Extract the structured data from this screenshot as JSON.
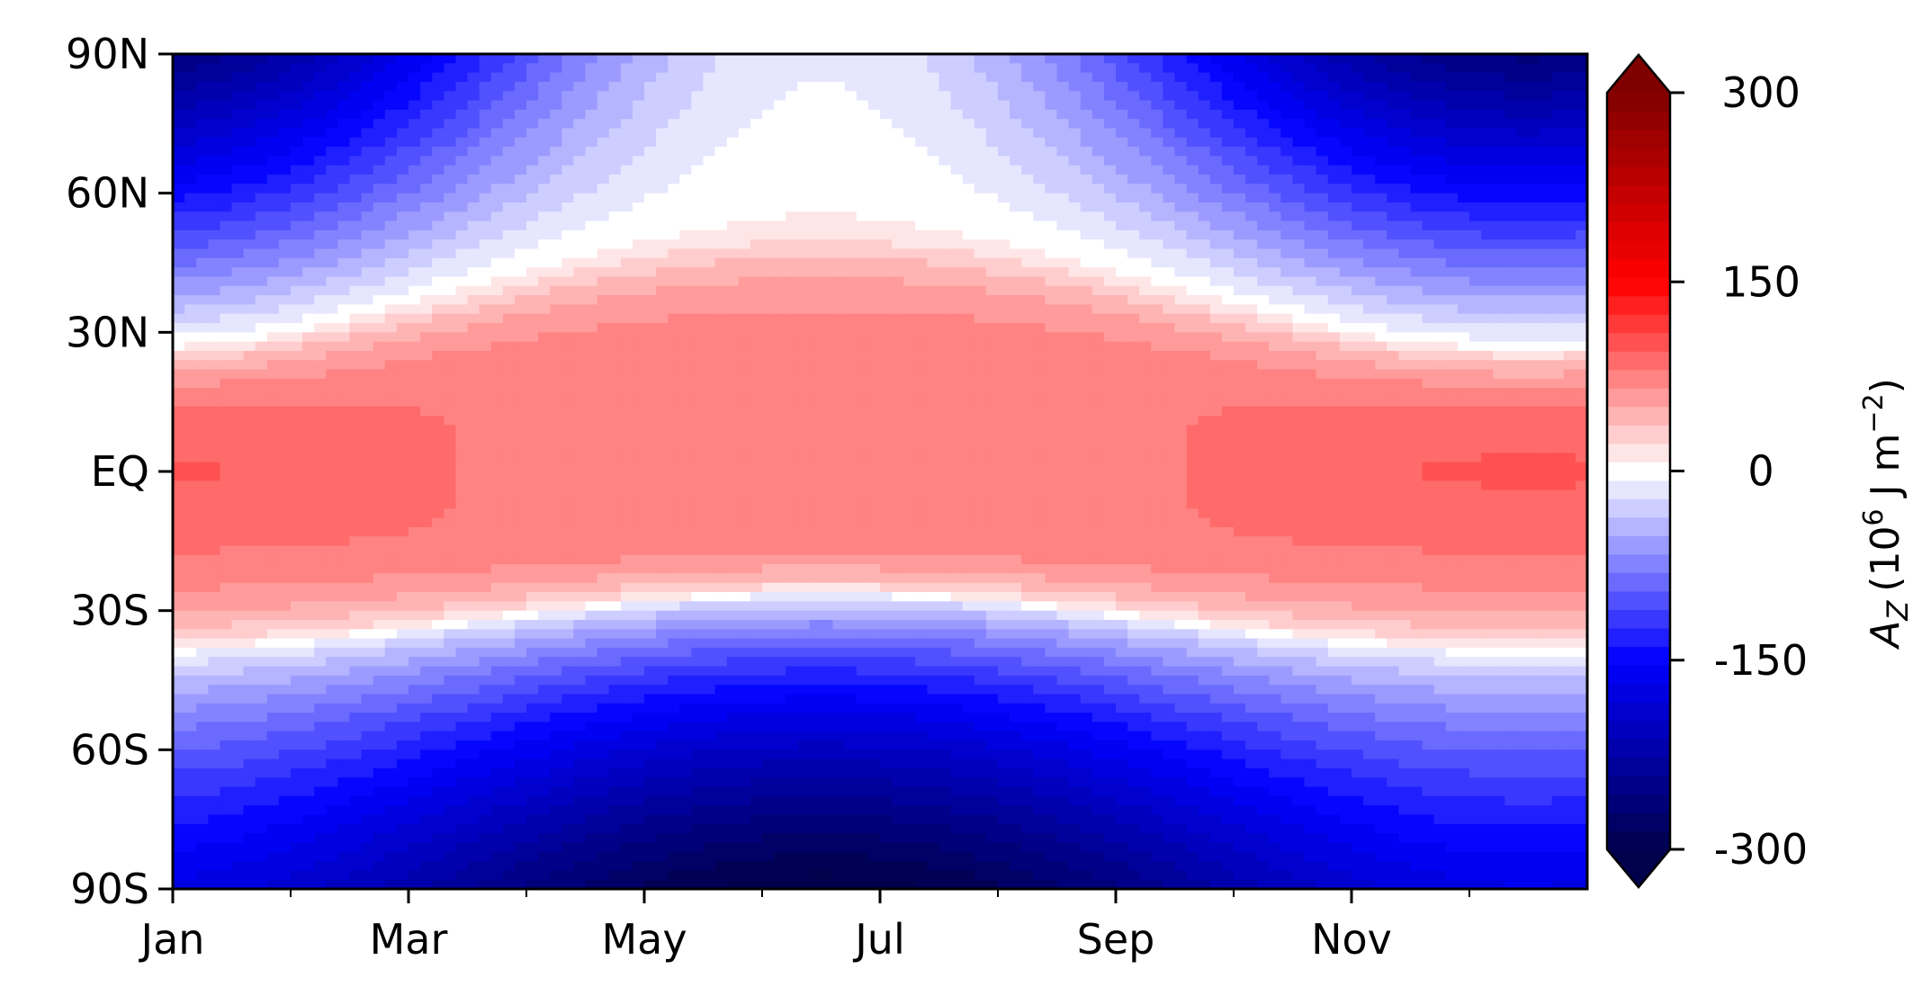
{
  "chart_data": {
    "type": "heatmap",
    "x_tick_labels": [
      "Jan",
      "Mar",
      "May",
      "Jul",
      "Sep",
      "Nov"
    ],
    "x_tick_months": [
      0,
      2,
      4,
      6,
      8,
      10
    ],
    "x_minor_tick_months": [
      1,
      3,
      5,
      7,
      9,
      11
    ],
    "x_range_months": [
      0,
      12
    ],
    "y_tick_labels": [
      "90N",
      "60N",
      "30N",
      "EQ",
      "30S",
      "60S",
      "90S"
    ],
    "y_tick_lats": [
      90,
      60,
      30,
      0,
      -30,
      -60,
      -90
    ],
    "y_range_lat": [
      -90,
      90
    ],
    "colorbar": {
      "label_main": "A",
      "label_sub": "Z",
      "label_units_open": "(10",
      "label_units_exp": "6",
      "label_units_mid": " J m",
      "label_units_exp2": "−2",
      "label_units_close": ")",
      "ticks": [
        "300",
        "150",
        "0",
        "-150",
        "-300"
      ],
      "tick_values": [
        300,
        150,
        0,
        -150,
        -300
      ],
      "range": [
        -300,
        300
      ],
      "extend": "both",
      "cmap": "seismic",
      "levels": 41
    },
    "field_model": {
      "description_units": "10^6 J m^-2",
      "tropics_value": 80,
      "peak_value_jan": 100,
      "north_pole_winter": -260,
      "north_pole_summer": -10,
      "south_pole_winter": -310,
      "south_pole_summer": -170
    }
  }
}
